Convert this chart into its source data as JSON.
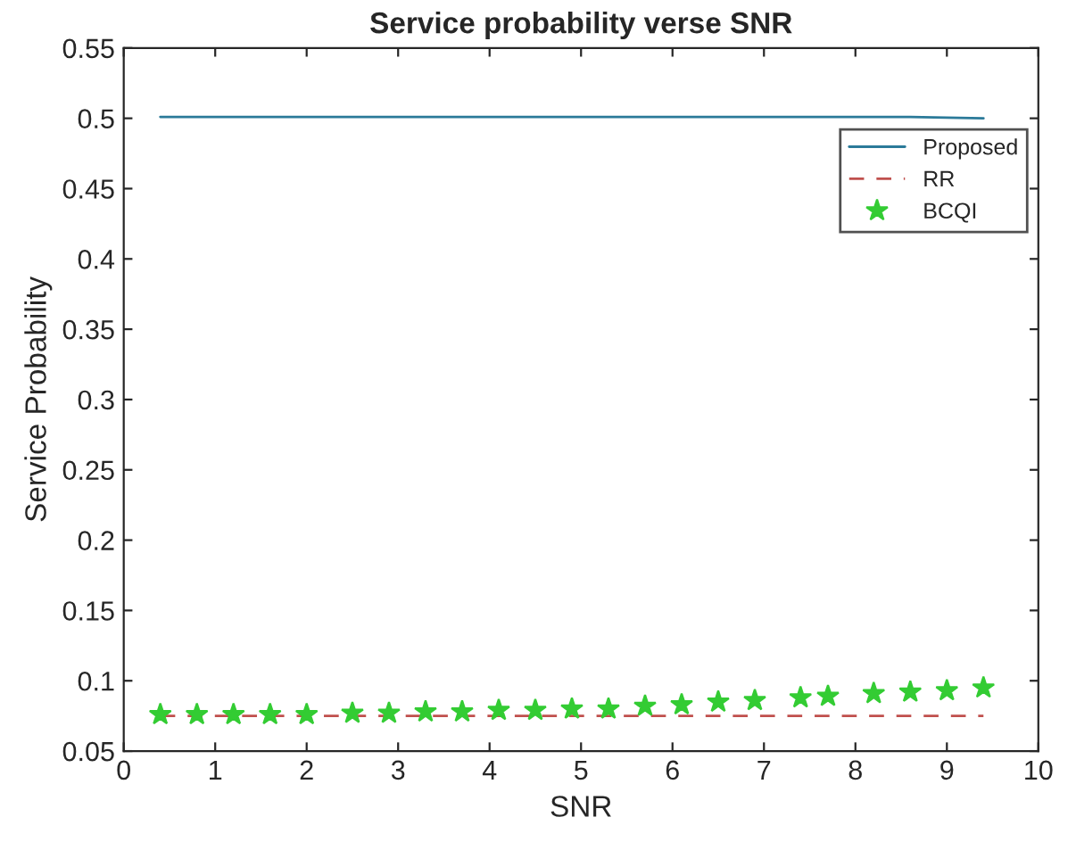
{
  "chart_data": {
    "type": "line",
    "title": "Service probability verse SNR",
    "xlabel": "SNR",
    "ylabel": "Service Probability",
    "xlim": [
      0,
      10
    ],
    "xticks": [
      0,
      1,
      2,
      3,
      4,
      5,
      6,
      7,
      8,
      9,
      10
    ],
    "ylim": [
      0.05,
      0.55
    ],
    "yticks": [
      0.05,
      0.1,
      0.15,
      0.2,
      0.25,
      0.3,
      0.35,
      0.4,
      0.45,
      0.5,
      0.55
    ],
    "grid": false,
    "legend": "top right",
    "series": [
      {
        "name": "Proposed",
        "color": "#2b7a99",
        "line_style": "solid",
        "marker": "none",
        "x": [
          0.4,
          8.6,
          9.4
        ],
        "values": [
          0.501,
          0.501,
          0.5
        ]
      },
      {
        "name": "RR",
        "color": "#c0504d",
        "line_style": "dashed",
        "marker": "none",
        "x": [
          0.4,
          9.4
        ],
        "values": [
          0.075,
          0.075
        ]
      },
      {
        "name": "BCQI",
        "type": "scatter",
        "color": "#33cc33",
        "marker": "star",
        "x": [
          0.4,
          0.8,
          1.2,
          1.6,
          2.0,
          2.5,
          2.9,
          3.3,
          3.7,
          4.1,
          4.5,
          4.9,
          5.3,
          5.7,
          6.1,
          6.5,
          6.9,
          7.4,
          7.7,
          8.2,
          8.6,
          9.0,
          9.4
        ],
        "values": [
          0.076,
          0.076,
          0.076,
          0.076,
          0.076,
          0.077,
          0.077,
          0.078,
          0.078,
          0.079,
          0.079,
          0.08,
          0.08,
          0.082,
          0.083,
          0.085,
          0.086,
          0.088,
          0.089,
          0.091,
          0.092,
          0.093,
          0.095
        ]
      }
    ]
  }
}
